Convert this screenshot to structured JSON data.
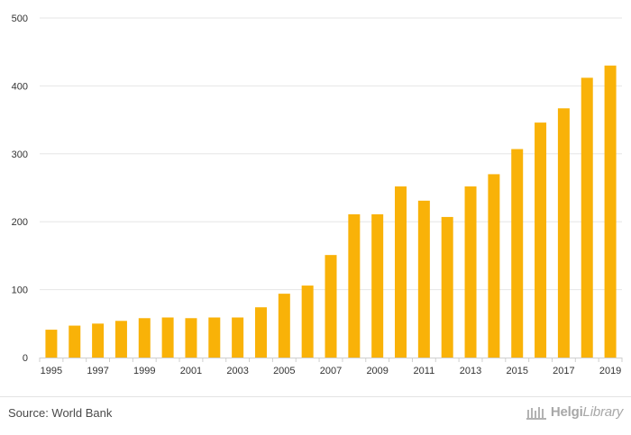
{
  "chart_data": {
    "type": "bar",
    "title": "",
    "xlabel": "",
    "ylabel": "",
    "categories": [
      "1995",
      "1996",
      "1997",
      "1998",
      "1999",
      "2000",
      "2001",
      "2002",
      "2003",
      "2004",
      "2005",
      "2006",
      "2007",
      "2008",
      "2009",
      "2010",
      "2011",
      "2012",
      "2013",
      "2014",
      "2015",
      "2016",
      "2017",
      "2018",
      "2019"
    ],
    "x_tick_labels": [
      "1995",
      "1997",
      "1999",
      "2001",
      "2003",
      "2005",
      "2007",
      "2009",
      "2011",
      "2013",
      "2015",
      "2017",
      "2019"
    ],
    "values": [
      41,
      47,
      50,
      54,
      58,
      59,
      58,
      59,
      59,
      74,
      94,
      106,
      151,
      211,
      211,
      252,
      231,
      207,
      252,
      270,
      307,
      346,
      367,
      412,
      430
    ],
    "y_ticks": [
      0,
      100,
      200,
      300,
      400,
      500
    ],
    "ylim": [
      0,
      500
    ],
    "grid": true,
    "bar_color": "#f9b208"
  },
  "footer": {
    "source": "Source: World Bank",
    "logo_text_main": "Helgi",
    "logo_text_sub": "Library",
    "logo_icon": "helgi-library-logo-icon"
  }
}
